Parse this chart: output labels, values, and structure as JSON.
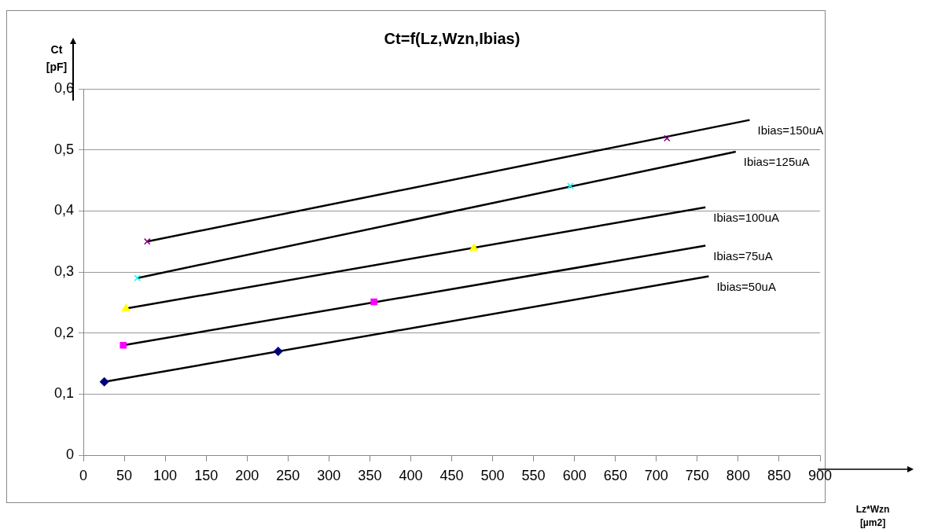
{
  "chart_data": {
    "type": "scatter",
    "title": "Ct=f(Lz,Wzn,Ibias)",
    "xlabel": "Lz*Wzn [µm2]",
    "ylabel": "Ct [pF]",
    "xlim": [
      0,
      900
    ],
    "xticks": [
      0,
      50,
      100,
      150,
      200,
      250,
      300,
      350,
      400,
      450,
      500,
      550,
      600,
      650,
      700,
      750,
      800,
      850,
      900
    ],
    "ylim": [
      0,
      0.6
    ],
    "yticks": [
      0,
      {
        "value": 0.1,
        "label": "0,1"
      },
      {
        "value": 0.2,
        "label": "0,2"
      },
      {
        "value": 0.3,
        "label": "0,3"
      },
      {
        "value": 0.4,
        "label": "0,4"
      },
      {
        "value": 0.5,
        "label": "0,5"
      },
      {
        "value": 0.6,
        "label": "0,6"
      }
    ],
    "grid": "y",
    "series": [
      {
        "type": "line",
        "name": "Ibias=50uA",
        "color": "#000000",
        "marker": "none",
        "x": [
          25.6,
          764
        ],
        "values": [
          0.12,
          0.293
        ]
      },
      {
        "type": "line",
        "name": "Ibias=75uA",
        "color": "#000000",
        "marker": "none",
        "x": [
          48.7,
          760
        ],
        "values": [
          0.18,
          0.343
        ]
      },
      {
        "type": "line",
        "name": "Ibias=100uA",
        "color": "#000000",
        "marker": "none",
        "x": [
          52,
          760
        ],
        "values": [
          0.24,
          0.406
        ]
      },
      {
        "type": "line",
        "name": "Ibias=125uA",
        "color": "#000000",
        "marker": "none",
        "x": [
          66,
          797
        ],
        "values": [
          0.29,
          0.497
        ]
      },
      {
        "type": "line",
        "name": "Ibias=150uA",
        "color": "#000000",
        "marker": "none",
        "x": [
          78,
          814
        ],
        "values": [
          0.35,
          0.549
        ]
      },
      {
        "type": "scatter",
        "color": "#000080",
        "marker": "diamond",
        "x": [
          25.6,
          238
        ],
        "values": [
          0.12,
          0.17
        ]
      },
      {
        "type": "scatter",
        "color": "#ff00ff",
        "marker": "square",
        "x": [
          48.7,
          355
        ],
        "values": [
          0.18,
          0.251
        ]
      },
      {
        "type": "scatter",
        "color": "#ffff00",
        "marker": "triangle",
        "x": [
          52,
          477
        ],
        "values": [
          0.24,
          0.339
        ]
      },
      {
        "type": "scatter",
        "color": "#00ffff",
        "marker": "cross",
        "x": [
          66,
          595
        ],
        "values": [
          0.29,
          0.441
        ]
      },
      {
        "type": "scatter",
        "color": "#800080",
        "marker": "cross",
        "x": [
          78,
          713
        ],
        "values": [
          0.35,
          0.519
        ]
      }
    ]
  }
}
